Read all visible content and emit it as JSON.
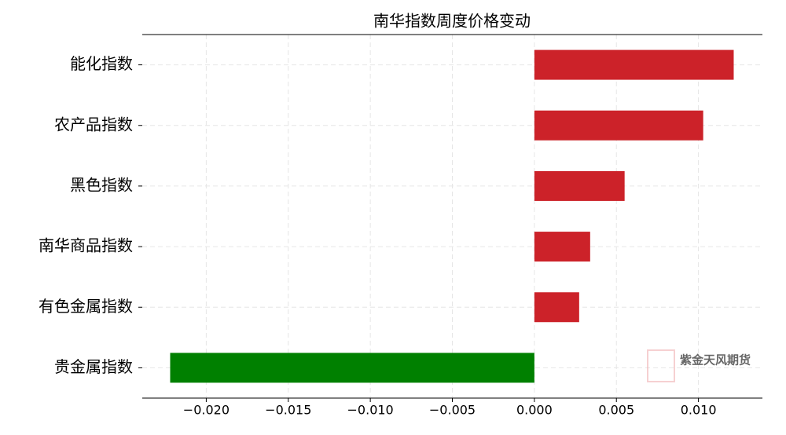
{
  "chart_data": {
    "type": "barh",
    "title": "南华指数周度价格变动",
    "categories": [
      "能化指数",
      "农产品指数",
      "黑色指数",
      "南华商品指数",
      "有色金属指数",
      "贵金属指数"
    ],
    "values": [
      0.01215,
      0.01029,
      0.0055,
      0.0034,
      0.00273,
      -0.0222
    ],
    "colors": [
      "#cc2229",
      "#cc2229",
      "#cc2229",
      "#cc2229",
      "#cc2229",
      "#008000"
    ],
    "xlim": [
      -0.0239,
      0.0139
    ],
    "xticks": [
      {
        "value": -0.02,
        "label": "−0.020"
      },
      {
        "value": -0.015,
        "label": "−0.015"
      },
      {
        "value": -0.01,
        "label": "−0.010"
      },
      {
        "value": -0.005,
        "label": "−0.005"
      },
      {
        "value": 0,
        "label": "0.000"
      },
      0.005,
      {
        "value": 0.01,
        "label": "0.010"
      }
    ],
    "grid": true,
    "watermark": "紫金天风期货"
  }
}
